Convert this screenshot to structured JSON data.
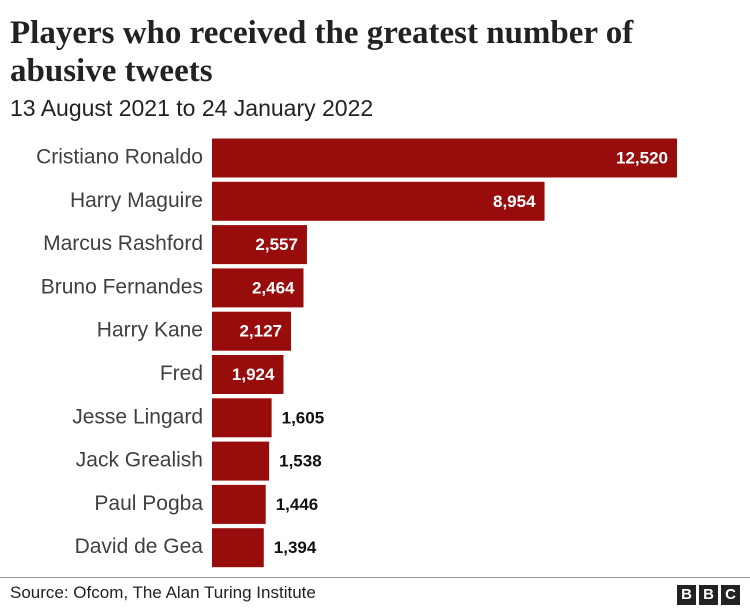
{
  "chart_data": {
    "type": "bar",
    "orientation": "horizontal",
    "title": "Players who received the greatest number of abusive tweets",
    "subtitle": "13 August 2021 to 24 January 2022",
    "categories": [
      "Cristiano Ronaldo",
      "Harry Maguire",
      "Marcus Rashford",
      "Bruno Fernandes",
      "Harry Kane",
      "Fred",
      "Jesse Lingard",
      "Jack Grealish",
      "Paul Pogba",
      "David de Gea"
    ],
    "values": [
      12520,
      8954,
      2557,
      2464,
      2127,
      1924,
      1605,
      1538,
      1446,
      1394
    ],
    "value_labels": [
      "12,520",
      "8,954",
      "2,557",
      "2,464",
      "2,127",
      "1,924",
      "1,605",
      "1,538",
      "1,446",
      "1,394"
    ],
    "color": "#990c0c",
    "source": "Source: Ofcom, The Alan Turing Institute",
    "logo": [
      "B",
      "B",
      "C"
    ]
  }
}
